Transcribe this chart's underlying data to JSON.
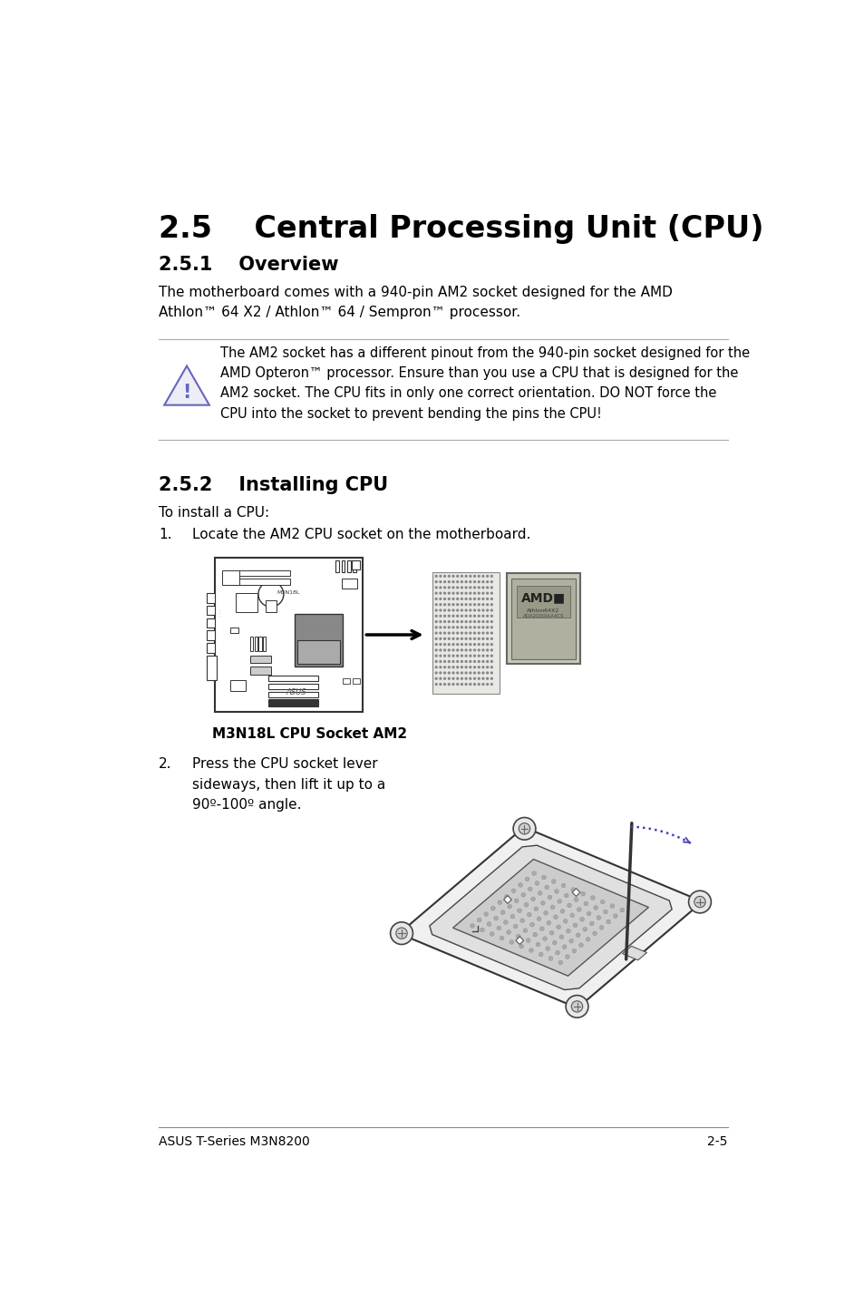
{
  "bg_color": "#ffffff",
  "title_main": "2.5    Central Processing Unit (CPU)",
  "title_sub1": "2.5.1    Overview",
  "title_sub2": "2.5.2    Installing CPU",
  "body_text1": "The motherboard comes with a 940-pin AM2 socket designed for the AMD\nAthlon™ 64 X2 / Athlon™ 64 / Sempron™ processor.",
  "warning_text": "The AM2 socket has a different pinout from the 940-pin socket designed for the\nAMD Opteron™ processor. Ensure than you use a CPU that is designed for the\nAM2 socket. The CPU fits in only one correct orientation. DO NOT force the\nCPU into the socket to prevent bending the pins the CPU!",
  "body_text2": "To install a CPU:",
  "step1_label": "1.",
  "step1_text": "Locate the AM2 CPU socket on the motherboard.",
  "step2_label": "2.",
  "step2_text": "Press the CPU socket lever\nsideways, then lift it up to a\n90º-100º angle.",
  "caption": "M3N18L CPU Socket AM2",
  "footer_left": "ASUS T-Series M3N8200",
  "footer_right": "2-5",
  "text_color": "#000000",
  "line_color": "#aaaaaa",
  "warn_icon_color": "#6666bb",
  "warn_border_color": "#aaaaaa"
}
